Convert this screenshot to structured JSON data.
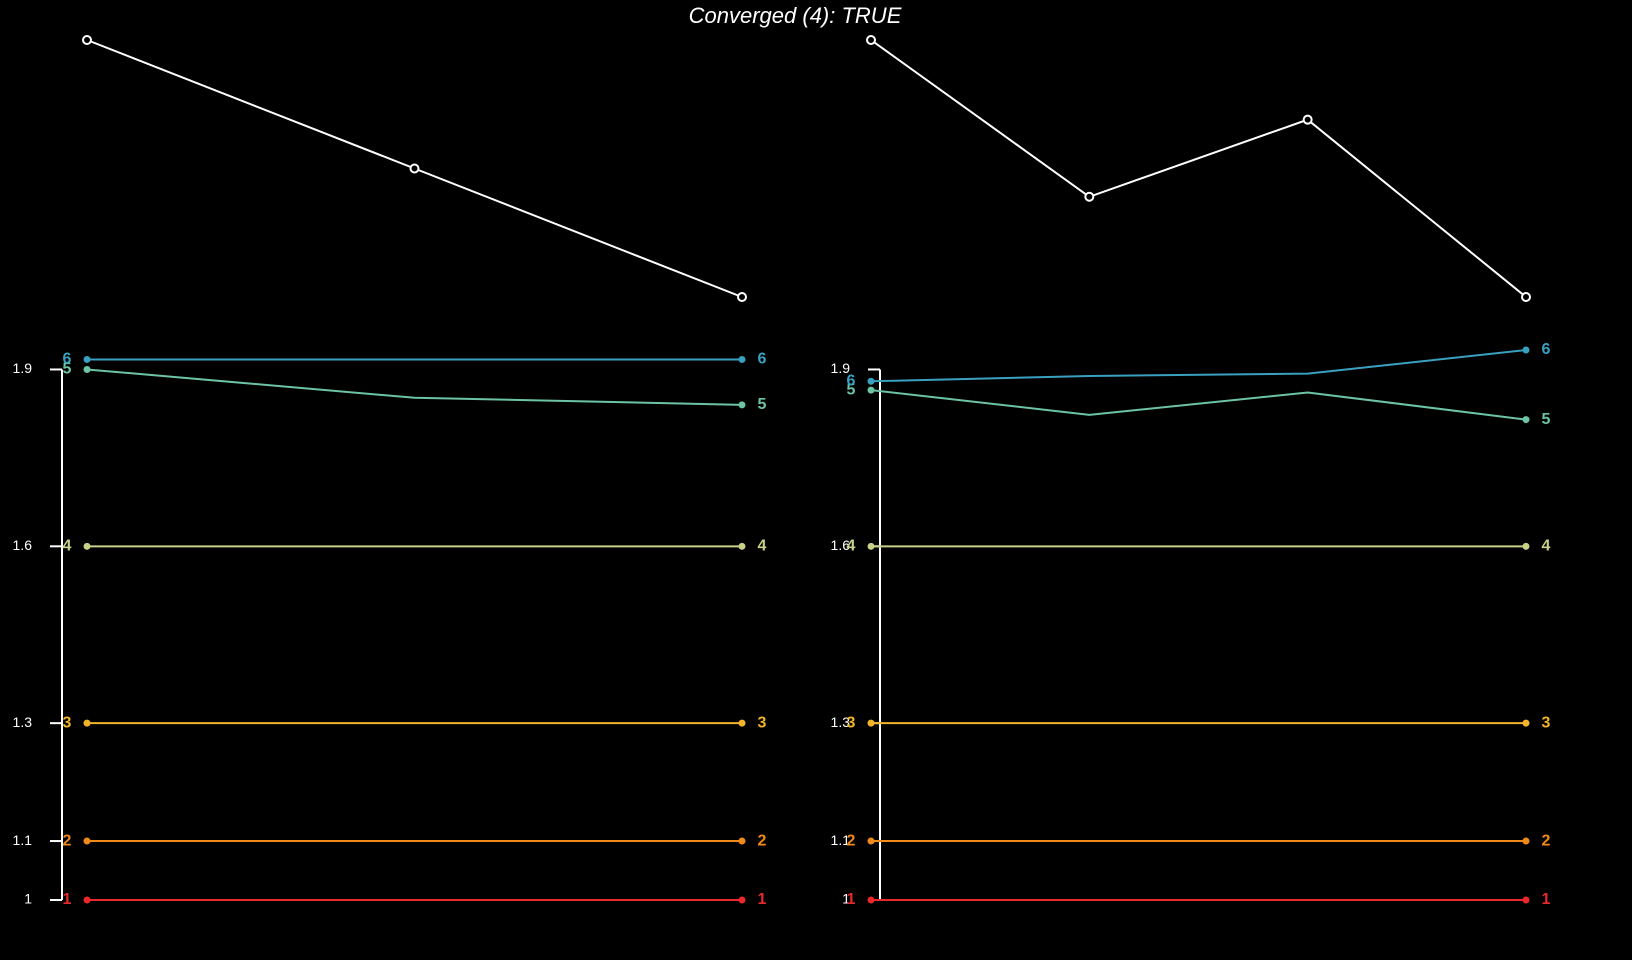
{
  "title": "Converged (4): TRUE",
  "chart_data": [
    {
      "type": "line",
      "x": [
        1,
        2,
        3
      ],
      "trace": {
        "color": "#ffffff",
        "values": [
          1,
          0.5,
          0
        ],
        "ylim": [
          0,
          1
        ]
      },
      "ylim": [
        1,
        1.95
      ],
      "yticks": [
        1,
        1.1,
        1.3,
        1.6,
        1.9
      ],
      "series": [
        {
          "name": "1",
          "color": "#e8282b",
          "values": [
            1,
            1,
            1
          ]
        },
        {
          "name": "2",
          "color": "#f28a1a",
          "values": [
            1.1,
            1.1,
            1.1
          ]
        },
        {
          "name": "3",
          "color": "#f2b52a",
          "values": [
            1.3,
            1.3,
            1.3
          ]
        },
        {
          "name": "4",
          "color": "#c9d189",
          "values": [
            1.6,
            1.6,
            1.6
          ]
        },
        {
          "name": "5",
          "color": "#6cc4a4",
          "values": [
            1.9,
            1.852,
            1.84
          ]
        },
        {
          "name": "6",
          "color": "#3aa0c0",
          "values": [
            1.917,
            1.917,
            1.917
          ]
        }
      ]
    },
    {
      "type": "line",
      "x": [
        1,
        2,
        3,
        4
      ],
      "trace": {
        "color": "#ffffff",
        "values": [
          1,
          0.39,
          0.69,
          0
        ],
        "ylim": [
          0,
          1
        ]
      },
      "ylim": [
        1,
        1.95
      ],
      "yticks": [
        1,
        1.1,
        1.3,
        1.6,
        1.9
      ],
      "series": [
        {
          "name": "1",
          "color": "#e8282b",
          "values": [
            1,
            1,
            1,
            1
          ]
        },
        {
          "name": "2",
          "color": "#f28a1a",
          "values": [
            1.1,
            1.1,
            1.1,
            1.1
          ]
        },
        {
          "name": "3",
          "color": "#f2b52a",
          "values": [
            1.3,
            1.3,
            1.3,
            1.3
          ]
        },
        {
          "name": "4",
          "color": "#c9d189",
          "values": [
            1.6,
            1.6,
            1.6,
            1.6
          ]
        },
        {
          "name": "5",
          "color": "#6cc4a4",
          "values": [
            1.865,
            1.823,
            1.861,
            1.815
          ]
        },
        {
          "name": "6",
          "color": "#3aa0c0",
          "values": [
            1.88,
            1.889,
            1.893,
            1.933
          ]
        }
      ]
    }
  ]
}
